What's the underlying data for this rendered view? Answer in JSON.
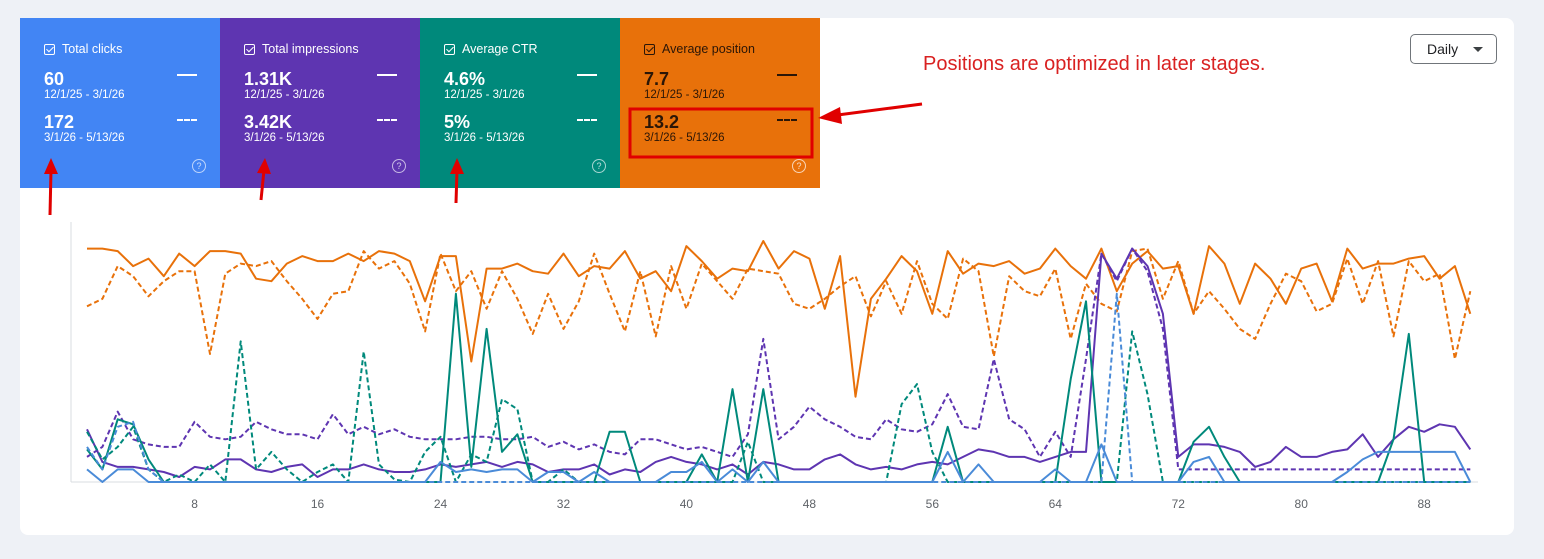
{
  "metrics": [
    {
      "key": "clicks",
      "label": "Total clicks",
      "value1": "60",
      "range1": "12/1/25 - 3/1/26",
      "value2": "172",
      "range2": "3/1/26 - 5/13/26",
      "color": "#4285f4"
    },
    {
      "key": "impressions",
      "label": "Total impressions",
      "value1": "1.31K",
      "range1": "12/1/25 - 3/1/26",
      "value2": "3.42K",
      "range2": "3/1/26 - 5/13/26",
      "color": "#5e35b1"
    },
    {
      "key": "ctr",
      "label": "Average CTR",
      "value1": "4.6%",
      "range1": "12/1/25 - 3/1/26",
      "value2": "5%",
      "range2": "3/1/26 - 5/13/26",
      "color": "#00897b"
    },
    {
      "key": "position",
      "label": "Average position",
      "value1": "7.7",
      "range1": "12/1/25 - 3/1/26",
      "value2": "13.2",
      "range2": "3/1/26 - 5/13/26",
      "color": "#e8710a"
    }
  ],
  "help_glyph": "?",
  "period_select": {
    "value": "Daily"
  },
  "annotation": {
    "text": "Positions are optimized in later stages.",
    "color": "#d92121"
  },
  "chart_data": {
    "type": "line",
    "x_ticks": [
      "8",
      "16",
      "24",
      "32",
      "40",
      "48",
      "56",
      "64",
      "72",
      "80",
      "88"
    ],
    "x_range": [
      1,
      91
    ],
    "y_range_normalized": [
      0,
      1
    ],
    "grid": false,
    "series": [
      {
        "metric": "position",
        "period": "current",
        "style": "solid",
        "color": "#e8710a",
        "values": [
          0.93,
          0.93,
          0.92,
          0.86,
          0.89,
          0.82,
          0.91,
          0.86,
          0.92,
          0.92,
          0.91,
          0.81,
          0.8,
          0.87,
          0.9,
          0.88,
          0.88,
          0.91,
          0.88,
          0.92,
          0.91,
          0.88,
          0.72,
          0.9,
          0.9,
          0.48,
          0.85,
          0.85,
          0.87,
          0.84,
          0.83,
          0.91,
          0.82,
          0.86,
          0.85,
          0.92,
          0.81,
          0.84,
          0.76,
          0.94,
          0.88,
          0.81,
          0.85,
          0.84,
          0.96,
          0.85,
          0.92,
          0.89,
          0.69,
          0.9,
          0.34,
          0.73,
          0.81,
          0.9,
          0.84,
          0.67,
          0.92,
          0.83,
          0.87,
          0.86,
          0.88,
          0.83,
          0.85,
          0.93,
          0.86,
          0.81,
          0.93,
          0.76,
          0.87,
          0.92,
          0.85,
          0.86,
          0.67,
          0.94,
          0.87,
          0.71,
          0.87,
          0.81,
          0.71,
          0.85,
          0.87,
          0.72,
          0.93,
          0.85,
          0.87,
          0.87,
          0.89,
          0.9,
          0.81,
          0.86,
          0.67
        ]
      },
      {
        "metric": "position",
        "period": "previous",
        "style": "dashed",
        "color": "#e8710a",
        "values": [
          0.7,
          0.73,
          0.86,
          0.82,
          0.74,
          0.8,
          0.84,
          0.84,
          0.51,
          0.83,
          0.87,
          0.86,
          0.88,
          0.8,
          0.73,
          0.65,
          0.75,
          0.76,
          0.92,
          0.85,
          0.88,
          0.79,
          0.6,
          0.91,
          0.76,
          0.84,
          0.69,
          0.84,
          0.73,
          0.59,
          0.75,
          0.61,
          0.72,
          0.91,
          0.75,
          0.6,
          0.84,
          0.58,
          0.86,
          0.69,
          0.87,
          0.8,
          0.73,
          0.85,
          0.84,
          0.83,
          0.71,
          0.69,
          0.73,
          0.78,
          0.82,
          0.66,
          0.8,
          0.67,
          0.88,
          0.71,
          0.65,
          0.89,
          0.84,
          0.5,
          0.82,
          0.76,
          0.74,
          0.85,
          0.57,
          0.79,
          0.71,
          0.68,
          0.92,
          0.93,
          0.73,
          0.88,
          0.67,
          0.76,
          0.69,
          0.61,
          0.57,
          0.71,
          0.83,
          0.8,
          0.68,
          0.71,
          0.89,
          0.71,
          0.88,
          0.58,
          0.88,
          0.8,
          0.83,
          0.49,
          0.76
        ]
      },
      {
        "metric": "impressions",
        "period": "current",
        "style": "solid",
        "color": "#5e35b1",
        "values": [
          0.21,
          0.08,
          0.06,
          0.06,
          0.05,
          0.04,
          0.02,
          0.06,
          0.05,
          0.09,
          0.09,
          0.05,
          0.04,
          0.06,
          0.07,
          0.02,
          0.05,
          0.05,
          0.07,
          0.05,
          0.04,
          0.04,
          0.05,
          0.07,
          0.06,
          0.07,
          0.08,
          0.06,
          0.08,
          0.07,
          0.04,
          0.05,
          0.05,
          0.07,
          0.03,
          0.05,
          0.04,
          0.08,
          0.1,
          0.08,
          0.07,
          0.05,
          0.07,
          0.03,
          0.08,
          0.07,
          0.05,
          0.05,
          0.09,
          0.11,
          0.07,
          0.05,
          0.06,
          0.05,
          0.07,
          0.08,
          0.07,
          0.1,
          0.13,
          0.12,
          0.1,
          0.1,
          0.08,
          0.1,
          0.12,
          0.12,
          0.91,
          0.81,
          0.93,
          0.86,
          0.67,
          0.1,
          0.15,
          0.15,
          0.14,
          0.12,
          0.06,
          0.08,
          0.14,
          0.1,
          0.1,
          0.12,
          0.13,
          0.19,
          0.1,
          0.17,
          0.22,
          0.2,
          0.23,
          0.22,
          0.13
        ]
      },
      {
        "metric": "impressions",
        "period": "previous",
        "style": "dashed",
        "color": "#5e35b1",
        "values": [
          0.1,
          0.14,
          0.28,
          0.17,
          0.15,
          0.14,
          0.14,
          0.24,
          0.18,
          0.17,
          0.18,
          0.24,
          0.21,
          0.19,
          0.19,
          0.17,
          0.27,
          0.19,
          0.22,
          0.19,
          0.21,
          0.18,
          0.17,
          0.17,
          0.17,
          0.18,
          0.18,
          0.17,
          0.17,
          0.18,
          0.14,
          0.16,
          0.13,
          0.15,
          0.12,
          0.11,
          0.17,
          0.17,
          0.15,
          0.13,
          0.14,
          0.12,
          0.1,
          0.19,
          0.57,
          0.17,
          0.22,
          0.3,
          0.25,
          0.22,
          0.18,
          0.17,
          0.25,
          0.21,
          0.2,
          0.23,
          0.35,
          0.22,
          0.21,
          0.49,
          0.25,
          0.21,
          0.1,
          0.2,
          0.1,
          0.49,
          0.91,
          0.8,
          0.93,
          0.84,
          0.61,
          0.05,
          0.05,
          0.05,
          0.05,
          0.05,
          0.05,
          0.05,
          0.05,
          0.05,
          0.05,
          0.05,
          0.05,
          0.05,
          0.05,
          0.05,
          0.05,
          0.05,
          0.05,
          0.05,
          0.05
        ]
      },
      {
        "metric": "ctr",
        "period": "current",
        "style": "solid",
        "color": "#00897b",
        "values": [
          0.13,
          0.05,
          0.25,
          0.23,
          0.09,
          0.0,
          0.0,
          0.0,
          0.0,
          0.0,
          0.0,
          0.0,
          0.0,
          0.0,
          0.0,
          0.0,
          0.0,
          0.0,
          0.0,
          0.0,
          0.0,
          0.0,
          0.0,
          0.0,
          0.75,
          0.06,
          0.61,
          0.12,
          0.19,
          0.0,
          0.0,
          0.0,
          0.0,
          0.0,
          0.2,
          0.2,
          0.0,
          0.0,
          0.0,
          0.0,
          0.11,
          0.0,
          0.37,
          0.0,
          0.37,
          0.0,
          0.0,
          0.0,
          0.0,
          0.0,
          0.0,
          0.0,
          0.0,
          0.0,
          0.0,
          0.0,
          0.22,
          0.0,
          0.0,
          0.0,
          0.0,
          0.0,
          0.0,
          0.0,
          0.41,
          0.72,
          0.0,
          0.0,
          0.0,
          0.0,
          0.0,
          0.0,
          0.16,
          0.22,
          0.1,
          0.0,
          0.0,
          0.0,
          0.0,
          0.0,
          0.0,
          0.0,
          0.0,
          0.0,
          0.0,
          0.17,
          0.59,
          0.0,
          0.0,
          0.0,
          0.0
        ]
      },
      {
        "metric": "ctr",
        "period": "previous",
        "style": "dashed",
        "color": "#00897b",
        "values": [
          0.2,
          0.09,
          0.14,
          0.22,
          0.05,
          0.0,
          0.03,
          0.0,
          0.07,
          0.0,
          0.56,
          0.05,
          0.12,
          0.05,
          0.0,
          0.04,
          0.07,
          0.0,
          0.52,
          0.07,
          0.01,
          0.0,
          0.12,
          0.18,
          0.0,
          0.11,
          0.08,
          0.33,
          0.29,
          0.0,
          0.0,
          0.05,
          0.0,
          0.0,
          0.0,
          0.0,
          0.0,
          0.0,
          0.0,
          0.0,
          0.0,
          0.0,
          0.0,
          0.16,
          0.0,
          0.0,
          0.0,
          0.0,
          0.0,
          0.0,
          0.0,
          0.0,
          0.0,
          0.31,
          0.39,
          0.12,
          0.0,
          0.0,
          0.0,
          0.0,
          0.0,
          0.0,
          0.0,
          0.0,
          0.0,
          0.0,
          0.0,
          0.0,
          0.6,
          0.35,
          0.0,
          0.0,
          0.0,
          0.0,
          0.0,
          0.0,
          0.0,
          0.0,
          0.0,
          0.0,
          0.0,
          0.0,
          0.0,
          0.0,
          0.0,
          0.0,
          0.0,
          0.0,
          0.0,
          0.0,
          0.0
        ]
      },
      {
        "metric": "clicks",
        "period": "current",
        "style": "solid",
        "color": "#4a8bd8",
        "values": [
          0.05,
          0.0,
          0.05,
          0.05,
          0.0,
          0.0,
          0.0,
          0.0,
          0.0,
          0.0,
          0.0,
          0.0,
          0.0,
          0.0,
          0.0,
          0.0,
          0.0,
          0.0,
          0.0,
          0.0,
          0.0,
          0.0,
          0.0,
          0.08,
          0.04,
          0.05,
          0.04,
          0.05,
          0.05,
          0.0,
          0.04,
          0.04,
          0.0,
          0.04,
          0.0,
          0.0,
          0.0,
          0.0,
          0.04,
          0.04,
          0.08,
          0.0,
          0.05,
          0.0,
          0.08,
          0.0,
          0.0,
          0.0,
          0.0,
          0.0,
          0.0,
          0.0,
          0.0,
          0.0,
          0.0,
          0.0,
          0.12,
          0.0,
          0.07,
          0.0,
          0.0,
          0.0,
          0.0,
          0.05,
          0.0,
          0.0,
          0.15,
          0.0,
          0.0,
          0.0,
          0.0,
          0.0,
          0.08,
          0.1,
          0.0,
          0.0,
          0.0,
          0.0,
          0.0,
          0.0,
          0.0,
          0.0,
          0.04,
          0.09,
          0.12,
          0.12,
          0.12,
          0.12,
          0.12,
          0.12,
          0.0
        ]
      },
      {
        "metric": "clicks",
        "period": "previous",
        "style": "dashed",
        "color": "#4a8bd8",
        "values": [
          0.14,
          0.05,
          0.22,
          0.24,
          0.05,
          0.0,
          0.0,
          0.0,
          0.0,
          0.0,
          0.0,
          0.0,
          0.0,
          0.0,
          0.0,
          0.0,
          0.0,
          0.0,
          0.0,
          0.0,
          0.0,
          0.0,
          0.0,
          0.0,
          0.0,
          0.0,
          0.0,
          0.0,
          0.0,
          0.0,
          0.0,
          0.0,
          0.0,
          0.0,
          0.0,
          0.0,
          0.0,
          0.0,
          0.0,
          0.0,
          0.0,
          0.0,
          0.0,
          0.0,
          0.0,
          0.0,
          0.0,
          0.0,
          0.0,
          0.0,
          0.0,
          0.0,
          0.0,
          0.0,
          0.0,
          0.0,
          0.0,
          0.0,
          0.0,
          0.0,
          0.0,
          0.0,
          0.0,
          0.0,
          0.0,
          0.0,
          0.0,
          0.75,
          0.0,
          0.0,
          0.0,
          0.0,
          0.0,
          0.0,
          0.0,
          0.0,
          0.0,
          0.0,
          0.0,
          0.0,
          0.0,
          0.0,
          0.0,
          0.0,
          0.0,
          0.0,
          0.0,
          0.0,
          0.0,
          0.0,
          0.0
        ]
      }
    ]
  }
}
